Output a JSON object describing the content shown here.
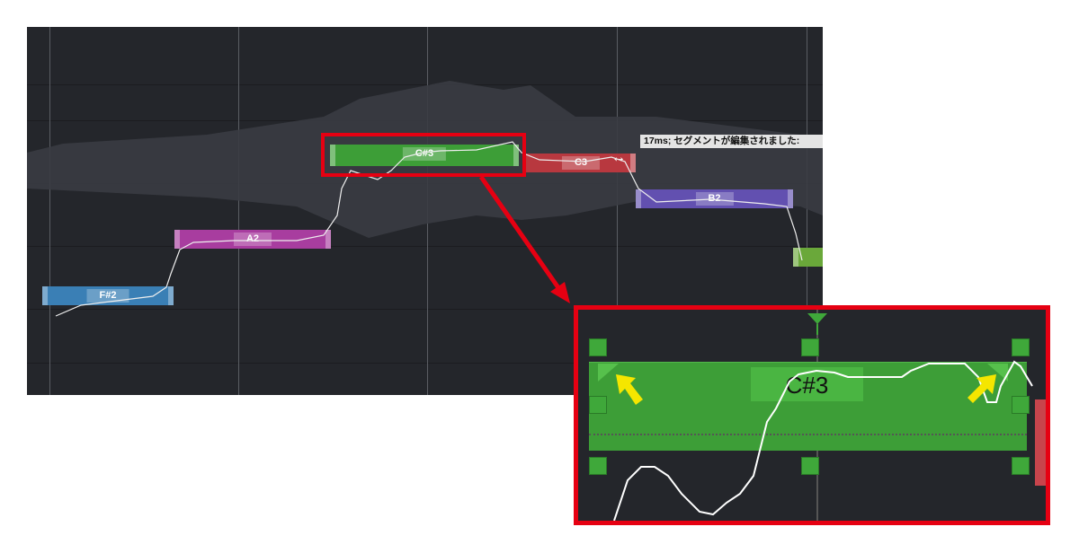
{
  "editor": {
    "notes": [
      {
        "pitch": "F#2",
        "color": "#3a7fb5"
      },
      {
        "pitch": "A2",
        "color": "#a83d9f"
      },
      {
        "pitch": "C#3",
        "color": "#3d9e37"
      },
      {
        "pitch": "C3",
        "color": "#b8383f"
      },
      {
        "pitch": "B2",
        "color": "#6250b0"
      }
    ],
    "tooltip": "17ms; セグメントが編集されました: ",
    "resize_cursor": "↔"
  },
  "inset": {
    "note_label": "C#3",
    "highlight_color": "#e60012",
    "arrow_color": "#f5e600"
  }
}
